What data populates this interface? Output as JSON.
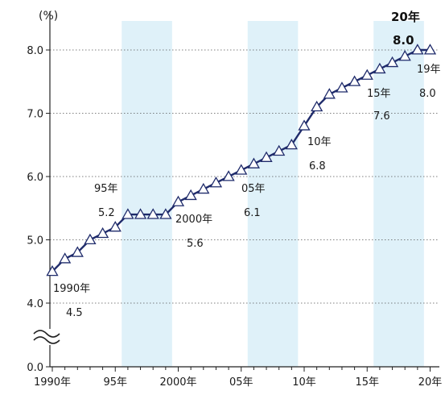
{
  "chart_data": {
    "type": "line",
    "y_unit_label": "(%)",
    "x": [
      1990,
      1991,
      1992,
      1993,
      1994,
      1995,
      1996,
      1997,
      1998,
      1999,
      2000,
      2001,
      2002,
      2003,
      2004,
      2005,
      2006,
      2007,
      2008,
      2009,
      2010,
      2011,
      2012,
      2013,
      2014,
      2015,
      2016,
      2017,
      2018,
      2019,
      2020
    ],
    "series": [
      {
        "values": [
          4.5,
          4.7,
          4.8,
          5.0,
          5.1,
          5.2,
          5.4,
          5.4,
          5.4,
          5.4,
          5.6,
          5.7,
          5.8,
          5.9,
          6.0,
          6.1,
          6.2,
          6.3,
          6.4,
          6.5,
          6.8,
          7.1,
          7.3,
          7.4,
          7.5,
          7.6,
          7.7,
          7.8,
          7.9,
          8.0,
          8.0
        ]
      }
    ],
    "ylim": [
      0,
      8.6
    ],
    "y_axis_break": true,
    "y_ticks": [
      "0.0",
      "4.0",
      "5.0",
      "6.0",
      "7.0",
      "8.0"
    ],
    "x_ticks": [
      "1990年",
      "95年",
      "2000年",
      "05年",
      "10年",
      "15年",
      "20年"
    ],
    "shaded_ranges": [
      [
        1995,
        1999
      ],
      [
        2005,
        2009
      ],
      [
        2015,
        2019
      ]
    ],
    "shade_color": "#dff1f9",
    "line_color": "#1f2b6b",
    "annotations": [
      {
        "year": "1990年",
        "value": "4.5"
      },
      {
        "year": "95年",
        "value": "5.2"
      },
      {
        "year": "2000年",
        "value": "5.6"
      },
      {
        "year": "05年",
        "value": "6.1"
      },
      {
        "year": "10年",
        "value": "6.8"
      },
      {
        "year": "15年",
        "value": "7.6"
      },
      {
        "year": "19年",
        "value": "8.0"
      },
      {
        "year": "20年",
        "value": "8.0"
      }
    ]
  }
}
